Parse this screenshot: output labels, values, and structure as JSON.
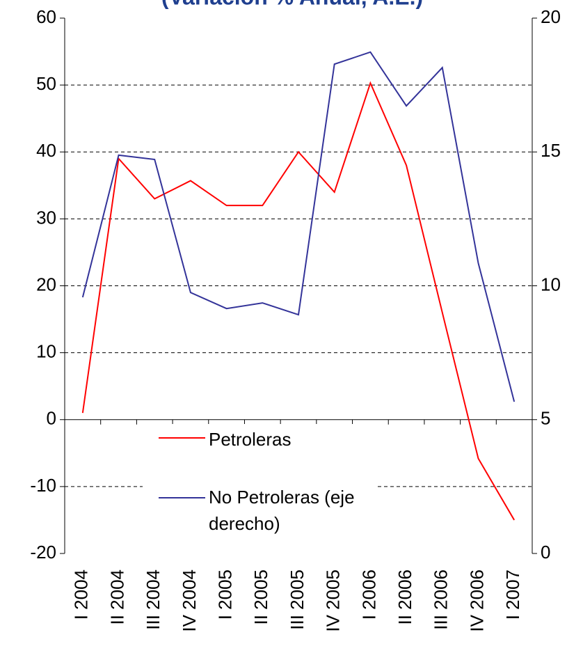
{
  "chart_data": {
    "type": "line",
    "title": "(Variación % Anual, A.E.)",
    "categories": [
      "I 2004",
      "II 2004",
      "III 2004",
      "IV 2004",
      "I 2005",
      "II 2005",
      "III 2005",
      "IV 2005",
      "I 2006",
      "II 2006",
      "III 2006",
      "IV 2006",
      "I 2007"
    ],
    "series": [
      {
        "name": "Petroleras",
        "color": "#ff0000",
        "values": [
          1,
          39,
          33,
          35.7,
          32,
          32,
          40,
          34,
          50.3,
          38,
          16,
          -5.8,
          -15
        ]
      },
      {
        "name": "No Petroleras (eje derecho)",
        "color": "#333399",
        "axis": "y2",
        "values": [
          9.57,
          14.88,
          14.72,
          9.75,
          9.15,
          9.36,
          8.92,
          18.28,
          18.73,
          16.72,
          18.15,
          10.85,
          5.67
        ]
      }
    ],
    "ylim": [
      -20,
      60
    ],
    "yticks": [
      -20,
      -10,
      0,
      10,
      20,
      30,
      40,
      50,
      60
    ],
    "y2lim": [
      0,
      20
    ],
    "y2ticks": [
      0,
      5,
      10,
      15,
      20
    ],
    "grid": true
  }
}
